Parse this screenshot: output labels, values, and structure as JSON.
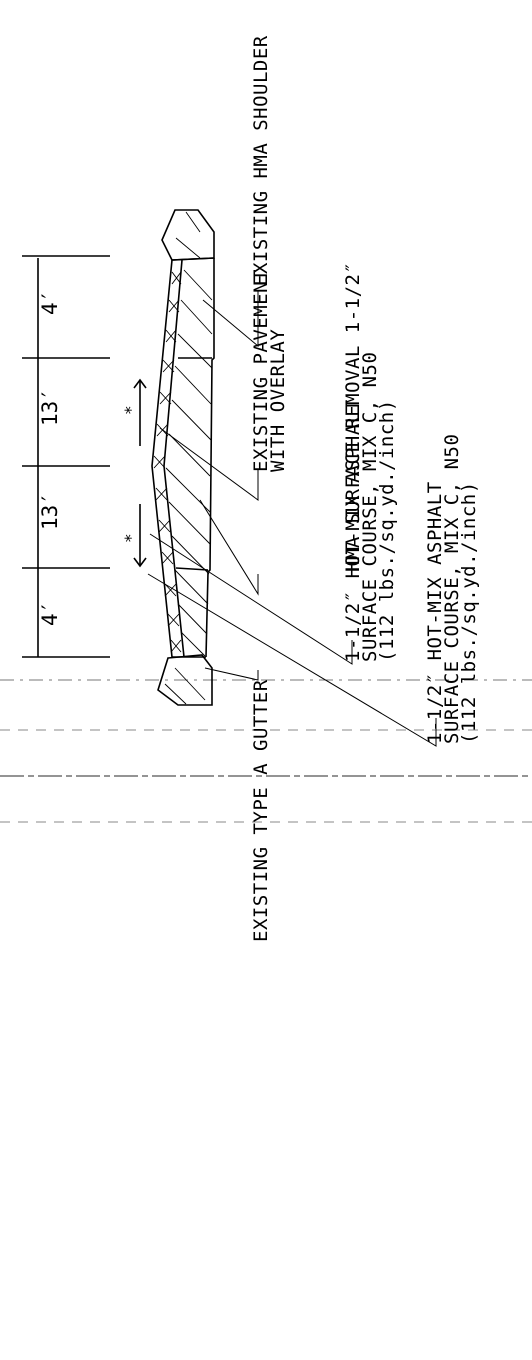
{
  "labels": {
    "shoulder": "EXISTING HMA SHOULDER",
    "pavement_line1": "EXISTING PAVEMENT",
    "pavement_line2": "WITH OVERLAY",
    "removal": "HMA SURFACE REMOVAL 1-1/2″",
    "surface_upper_line1": "1-1/2″ HOT-MIX ASPHALT",
    "surface_upper_line2": "SURFACE COURSE, MIX C, N50",
    "surface_upper_line3": "(112 lbs./sq.yd./inch)",
    "surface_lower_line1": "1-1/2″ HOT-MIX ASPHALT",
    "surface_lower_line2": "SURFACE COURSE, MIX C, N50",
    "surface_lower_line3": "(112 lbs./sq.yd./inch)",
    "gutter": "EXISTING TYPE A GUTTER"
  },
  "dimensions": {
    "shoulder_width": "4′",
    "lane_right": "13′",
    "lane_left": "13′",
    "gutter_side_width": "4′"
  },
  "markers": {
    "slope_right": "*",
    "slope_left": "*"
  },
  "colors": {
    "ink": "#000000",
    "background": "#ffffff"
  }
}
